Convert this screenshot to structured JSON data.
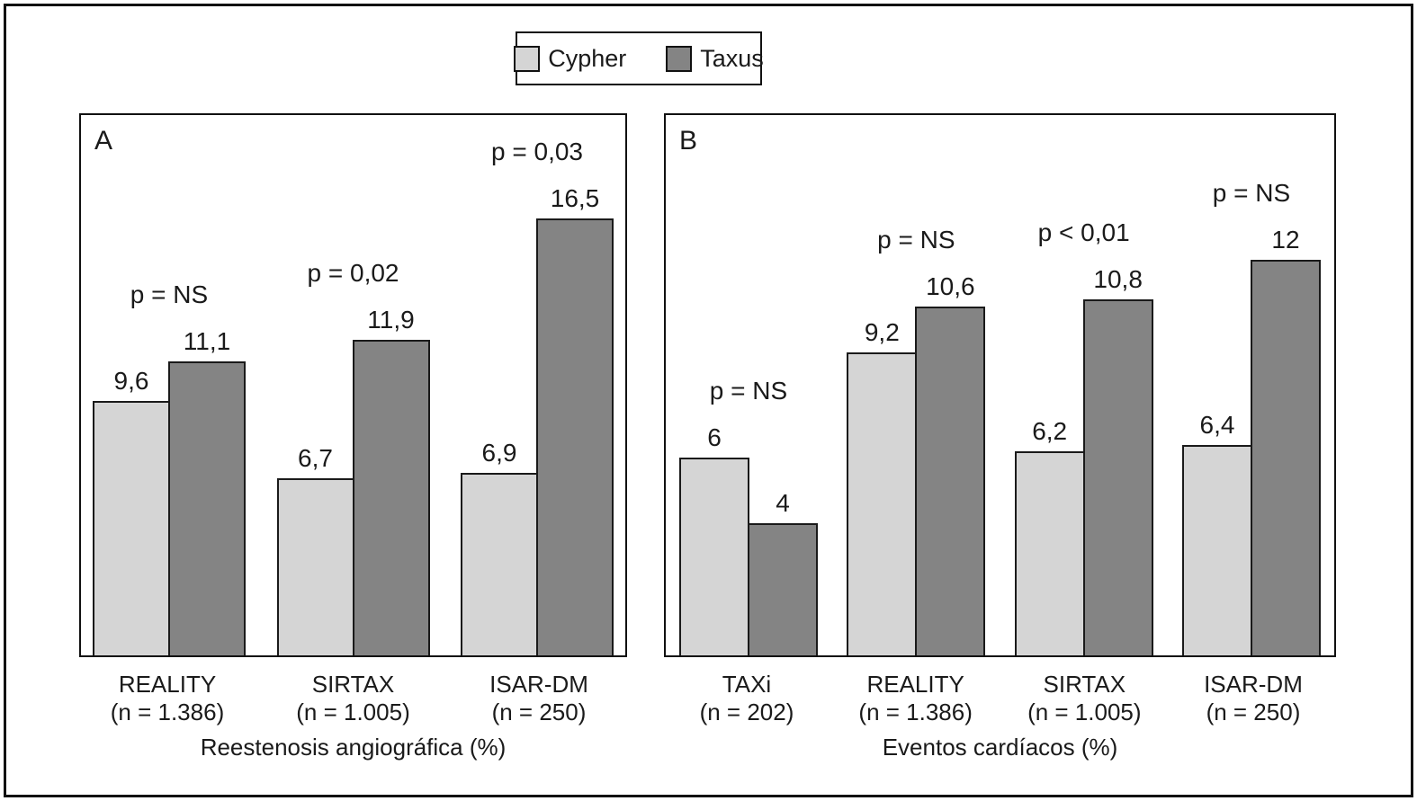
{
  "legend": {
    "items": [
      {
        "label": "Cypher",
        "color": "#d5d5d5"
      },
      {
        "label": "Taxus",
        "color": "#848484"
      }
    ]
  },
  "chart_data": [
    {
      "type": "bar",
      "panel": "A",
      "xlabel": "Reestenosis angiográfica (%)",
      "ylim": [
        0,
        20.4
      ],
      "grid": false,
      "legend_position": "top-center",
      "categories": [
        {
          "name": "REALITY",
          "n_label": "(n = 1.386)",
          "p_label": "p = NS"
        },
        {
          "name": "SIRTAX",
          "n_label": "(n = 1.005)",
          "p_label": "p = 0,02"
        },
        {
          "name": "ISAR-DM",
          "n_label": "(n = 250)",
          "p_label": "p = 0,03"
        }
      ],
      "series": [
        {
          "name": "Cypher",
          "color": "#d5d5d5",
          "values": [
            9.6,
            6.7,
            6.9
          ],
          "value_labels": [
            "9,6",
            "6,7",
            "6,9"
          ]
        },
        {
          "name": "Taxus",
          "color": "#848484",
          "values": [
            11.1,
            11.9,
            16.5
          ],
          "value_labels": [
            "11,1",
            "11,9",
            "16,5"
          ]
        }
      ]
    },
    {
      "type": "bar",
      "panel": "B",
      "xlabel": "Eventos cardíacos (%)",
      "ylim": [
        0,
        16.4
      ],
      "grid": false,
      "legend_position": "top-center",
      "categories": [
        {
          "name": "TAXi",
          "n_label": "(n = 202)",
          "p_label": "p = NS"
        },
        {
          "name": "REALITY",
          "n_label": "(n = 1.386)",
          "p_label": "p = NS"
        },
        {
          "name": "SIRTAX",
          "n_label": "(n = 1.005)",
          "p_label": "p < 0,01"
        },
        {
          "name": "ISAR-DM",
          "n_label": "(n = 250)",
          "p_label": "p = NS"
        }
      ],
      "series": [
        {
          "name": "Cypher",
          "color": "#d5d5d5",
          "values": [
            6,
            9.2,
            6.2,
            6.4
          ],
          "value_labels": [
            "6",
            "9,2",
            "6,2",
            "6,4"
          ]
        },
        {
          "name": "Taxus",
          "color": "#848484",
          "values": [
            4,
            10.6,
            10.8,
            12
          ],
          "value_labels": [
            "4",
            "10,6",
            "10,8",
            "12"
          ]
        }
      ]
    }
  ]
}
